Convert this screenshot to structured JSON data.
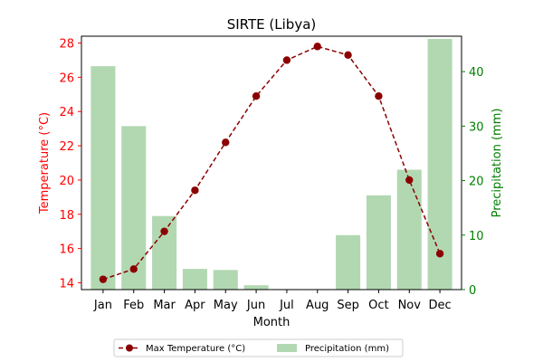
{
  "chart_data": {
    "type": "bar+line",
    "title": "SIRTE (Libya)",
    "xlabel": "Month",
    "categories": [
      "Jan",
      "Feb",
      "Mar",
      "Apr",
      "May",
      "Jun",
      "Jul",
      "Aug",
      "Sep",
      "Oct",
      "Nov",
      "Dec"
    ],
    "left_axis": {
      "label": "Temperature (°C)",
      "color": "#ff0000",
      "ylim": [
        13.6,
        28.4
      ],
      "ticks": [
        14,
        16,
        18,
        20,
        22,
        24,
        26,
        28
      ]
    },
    "right_axis": {
      "label": "Precipitation (mm)",
      "color": "#008000",
      "ylim": [
        0,
        46.5
      ],
      "ticks": [
        0,
        10,
        20,
        30,
        40
      ]
    },
    "series": [
      {
        "name": "Max Temperature (°C)",
        "type": "line",
        "axis": "left",
        "style": "dashed",
        "marker": "circle",
        "color": "#8b0000",
        "values": [
          14.2,
          14.8,
          17.0,
          19.4,
          22.2,
          24.9,
          27.0,
          27.8,
          27.3,
          24.9,
          20.0,
          15.7
        ]
      },
      {
        "name": "Precipitation (mm)",
        "type": "bar",
        "axis": "right",
        "color": "#b2d8b2",
        "values": [
          41,
          30,
          13.5,
          3.8,
          3.6,
          0.8,
          0.1,
          0.1,
          10,
          17.3,
          22,
          46
        ]
      }
    ],
    "legend_position": "below"
  }
}
